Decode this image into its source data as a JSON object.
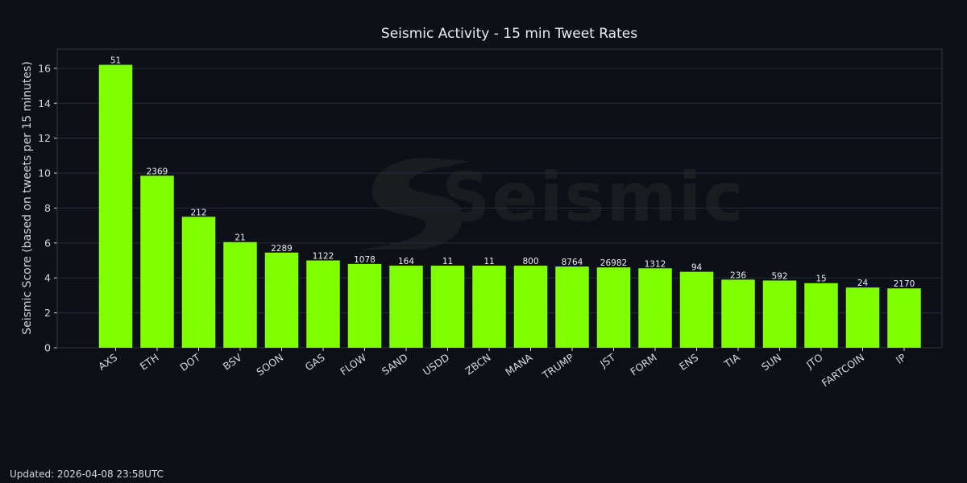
{
  "colors": {
    "background": "#0d1117",
    "bar": "#7fff00",
    "grid": "#222d3d",
    "axis": "#30363d",
    "text": "#d0d7de",
    "watermark": "#1b1c1f"
  },
  "watermark": {
    "text": "Seismic",
    "icon": "seismic-logo-icon"
  },
  "chart_data": {
    "type": "bar",
    "title": "Seismic Activity - 15 min Tweet Rates",
    "xlabel": "",
    "ylabel": "Seismic Score (based on tweets per 15 minutes)",
    "ylim": [
      0,
      17.1
    ],
    "yticks": [
      0,
      2,
      4,
      6,
      8,
      10,
      12,
      14,
      16
    ],
    "grid": true,
    "categories": [
      "AXS",
      "ETH",
      "DOT",
      "BSV",
      "SOON",
      "GAS",
      "FLOW",
      "SAND",
      "USDD",
      "ZBCN",
      "MANA",
      "TRUMP",
      "JST",
      "FORM",
      "ENS",
      "TIA",
      "SUN",
      "JTO",
      "FARTCOIN",
      "IP"
    ],
    "values": [
      16.2,
      9.85,
      7.5,
      6.05,
      5.45,
      5.0,
      4.8,
      4.7,
      4.7,
      4.7,
      4.7,
      4.65,
      4.6,
      4.55,
      4.35,
      3.9,
      3.85,
      3.7,
      3.45,
      3.4
    ],
    "data_labels": [
      "51",
      "2369",
      "212",
      "21",
      "2289",
      "1122",
      "1078",
      "164",
      "11",
      "11",
      "800",
      "8764",
      "26982",
      "1312",
      "94",
      "236",
      "592",
      "15",
      "24",
      "2170"
    ]
  },
  "footer": {
    "updated": "Updated: 2026-04-08 23:58UTC"
  }
}
